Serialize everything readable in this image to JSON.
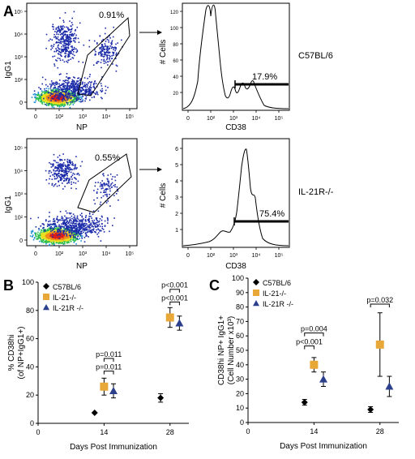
{
  "panel_letters": {
    "a": "A",
    "b": "B",
    "c": "C"
  },
  "flow": {
    "rows": [
      {
        "strain": "C57BL/6",
        "gate_pct": "0.91%",
        "hist_pct": "17.9%",
        "scatter_ylabel": "IgG1",
        "scatter_xlabel": "NP",
        "hist_ylabel": "# Cells",
        "hist_xlabel": "CD38",
        "hist_yticks": [
          "20",
          "40",
          "60",
          "80",
          "100",
          "120"
        ]
      },
      {
        "strain": "IL-21R-/-",
        "gate_pct": "0.55%",
        "hist_pct": "75.4%",
        "scatter_ylabel": "IgG1",
        "scatter_xlabel": "NP",
        "hist_ylabel": "# Cells",
        "hist_xlabel": "CD38",
        "hist_yticks": [
          "1",
          "2",
          "3",
          "4",
          "5",
          "6"
        ]
      }
    ],
    "log_ticks": [
      "0",
      "10²",
      "10³",
      "10⁴",
      "10⁵"
    ],
    "hist_log_ticks": [
      "0",
      "10²",
      "10³",
      "10⁴",
      "10⁵"
    ],
    "density_colors": [
      "#1a2aa8",
      "#1f8fd6",
      "#2dbf4a",
      "#e8e020",
      "#f08a1a",
      "#d81e1e"
    ]
  },
  "chart_data": [
    {
      "type": "scatter",
      "panel": "B",
      "ylabel_line1": "% CD38hi",
      "ylabel_line2": "(of NP+IgG1+)",
      "xlabel": "Days Post Immunization",
      "xticks": [
        "0",
        "14",
        "28"
      ],
      "yticks": [
        "0",
        "20",
        "40",
        "60",
        "80",
        "100"
      ],
      "xlim": [
        0,
        32
      ],
      "ylim": [
        0,
        100
      ],
      "legend_placement": "top-left",
      "series": [
        {
          "name": "C57BL/6",
          "marker": "diamond",
          "color": "#000000",
          "points": [
            {
              "x": 12,
              "y": 7.5,
              "err": 0
            },
            {
              "x": 26,
              "y": 18,
              "err": 3
            }
          ]
        },
        {
          "name": "IL-21-/-",
          "marker": "square",
          "color": "#e8a838",
          "points": [
            {
              "x": 14,
              "y": 26,
              "err": 6
            },
            {
              "x": 28,
              "y": 75,
              "err": 7
            }
          ]
        },
        {
          "name": "IL-21R -/-",
          "marker": "triangle",
          "color": "#2b3f8c",
          "points": [
            {
              "x": 16,
              "y": 23,
              "err": 5
            },
            {
              "x": 30,
              "y": 71,
              "err": 5
            }
          ]
        }
      ],
      "brackets": [
        {
          "label": "p=0.011",
          "x1": 14,
          "x2": 16,
          "y": 37
        },
        {
          "label": "p=0.011",
          "x1": 14,
          "x2": 16,
          "y": 46
        },
        {
          "label": "p<0.001",
          "x1": 28,
          "x2": 30,
          "y": 86
        },
        {
          "label": "p<0.001",
          "x1": 28,
          "x2": 30,
          "y": 95
        }
      ]
    },
    {
      "type": "scatter",
      "panel": "C",
      "ylabel_line1": "CD38hi NP+ IgG1+",
      "ylabel_line2": "(Cell Number x10³)",
      "xlabel": "Days Post Immunization",
      "xticks": [
        "0",
        "14",
        "28"
      ],
      "yticks": [
        "0",
        "10",
        "20",
        "30",
        "40",
        "50",
        "60",
        "70",
        "80",
        "90",
        "100"
      ],
      "xlim": [
        0,
        32
      ],
      "ylim": [
        0,
        100
      ],
      "legend_placement": "top-left",
      "series": [
        {
          "name": "C57BL/6",
          "marker": "diamond",
          "color": "#000000",
          "points": [
            {
              "x": 12,
              "y": 14,
              "err": 2
            },
            {
              "x": 26,
              "y": 9,
              "err": 2
            }
          ]
        },
        {
          "name": "IL-21-/-",
          "marker": "square",
          "color": "#e8a838",
          "points": [
            {
              "x": 14,
              "y": 40,
              "err": 5
            },
            {
              "x": 28,
              "y": 54,
              "err": 22
            }
          ]
        },
        {
          "name": "IL-21R -/-",
          "marker": "triangle",
          "color": "#2b3f8c",
          "points": [
            {
              "x": 16,
              "y": 30,
              "err": 5
            },
            {
              "x": 30,
              "y": 25,
              "err": 7
            }
          ]
        }
      ],
      "brackets": [
        {
          "label": "p<0.001",
          "x1": 12,
          "x2": 14,
          "y": 53
        },
        {
          "label": "p=0.004",
          "x1": 12,
          "x2": 16,
          "y": 62
        },
        {
          "label": "p=0.032",
          "x1": 26,
          "x2": 30,
          "y": 82
        }
      ]
    }
  ]
}
